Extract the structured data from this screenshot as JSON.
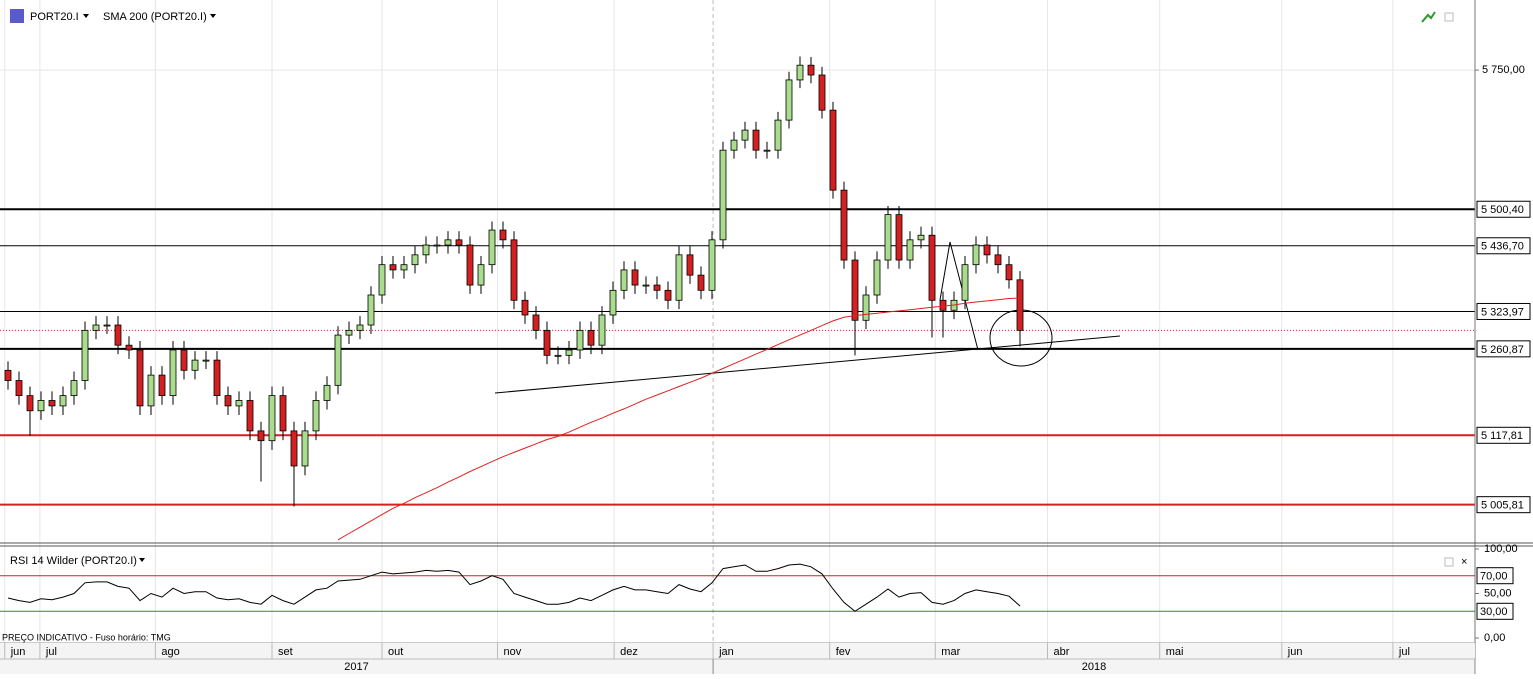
{
  "chart_data": {
    "type": "candlestick",
    "symbol": "PORT20.I",
    "footnote": "PREÇO INDICATIVO - Fuso horário: TMG",
    "log_scale": true,
    "up_color": "#a9dc8c",
    "down_color": "#d42020",
    "ylim": [
      4945,
      5880
    ],
    "yticks": [
      {
        "value": 5750,
        "label": "5 750,00"
      }
    ],
    "levels": [
      {
        "value": 5500.4,
        "label": "5 500,40",
        "color": "#000000",
        "thick": true
      },
      {
        "value": 5436.7,
        "label": "5 436,70",
        "color": "#000000",
        "thick": false
      },
      {
        "value": 5323.97,
        "label": "5 323,97",
        "color": "#000000",
        "thick": false
      },
      {
        "value": 5260.87,
        "label": "5 260,87",
        "color": "#000000",
        "thick": true
      },
      {
        "value": 5117.81,
        "label": "5 117,81",
        "color": "#d42020",
        "thick": true
      },
      {
        "value": 5005.81,
        "label": "5 005,81",
        "color": "#d42020",
        "thick": true
      }
    ],
    "xticks": [
      {
        "value": -0.3,
        "label": "jun"
      },
      {
        "value": 2.9,
        "label": "jul"
      },
      {
        "value": 13.4,
        "label": "ago"
      },
      {
        "value": 24,
        "label": "set"
      },
      {
        "value": 34,
        "label": "out"
      },
      {
        "value": 44.5,
        "label": "nov"
      },
      {
        "value": 55.1,
        "label": "dez"
      },
      {
        "value": 64.1,
        "label": "jan"
      },
      {
        "value": 74.7,
        "label": "fev"
      },
      {
        "value": 84.3,
        "label": "mar"
      },
      {
        "value": 94.5,
        "label": "abr"
      },
      {
        "value": 104.7,
        "label": "mai"
      },
      {
        "value": 115.8,
        "label": "jun"
      },
      {
        "value": 125.9,
        "label": "jul"
      }
    ],
    "years": [
      {
        "value": 64.1,
        "label": "2017"
      },
      {
        "value": 134.3,
        "label": "2018"
      }
    ],
    "open": [
      5225,
      5208,
      5183,
      5158,
      5175,
      5166,
      5183,
      5208,
      5292,
      5301,
      5301,
      5267,
      5259,
      5166,
      5217,
      5183,
      5259,
      5225,
      5242,
      5242,
      5183,
      5166,
      5175,
      5125,
      5109,
      5183,
      5125,
      5068,
      5125,
      5175,
      5200,
      5284,
      5292,
      5301,
      5352,
      5404,
      5395,
      5404,
      5421,
      5438,
      5438,
      5447,
      5438,
      5369,
      5404,
      5464,
      5447,
      5343,
      5318,
      5292,
      5250,
      5250,
      5259,
      5292,
      5267,
      5318,
      5360,
      5395,
      5369,
      5369,
      5360,
      5343,
      5421,
      5386,
      5360,
      5447,
      5605,
      5623,
      5641,
      5605,
      5605,
      5659,
      5732,
      5759,
      5741,
      5677,
      5534,
      5412,
      5309,
      5352,
      5412,
      5491,
      5412,
      5447,
      5455,
      5343,
      5326,
      5343,
      5404,
      5438,
      5421,
      5404,
      5378
    ],
    "high": [
      5240,
      5223,
      5198,
      5190,
      5190,
      5198,
      5223,
      5307,
      5316,
      5316,
      5316,
      5282,
      5274,
      5232,
      5232,
      5274,
      5274,
      5257,
      5257,
      5257,
      5198,
      5190,
      5190,
      5140,
      5198,
      5198,
      5140,
      5140,
      5190,
      5215,
      5299,
      5307,
      5316,
      5367,
      5419,
      5419,
      5419,
      5436,
      5453,
      5453,
      5462,
      5462,
      5453,
      5419,
      5479,
      5479,
      5462,
      5358,
      5333,
      5307,
      5265,
      5274,
      5307,
      5307,
      5333,
      5375,
      5410,
      5410,
      5384,
      5384,
      5375,
      5436,
      5436,
      5401,
      5462,
      5620,
      5638,
      5656,
      5656,
      5620,
      5674,
      5747,
      5775,
      5774,
      5756,
      5692,
      5549,
      5427,
      5367,
      5427,
      5506,
      5506,
      5462,
      5470,
      5470,
      5358,
      5358,
      5419,
      5453,
      5453,
      5436,
      5419,
      5393
    ],
    "low": [
      5193,
      5168,
      5117,
      5143,
      5151,
      5151,
      5168,
      5193,
      5277,
      5286,
      5252,
      5244,
      5151,
      5151,
      5168,
      5168,
      5210,
      5210,
      5227,
      5168,
      5151,
      5151,
      5110,
      5043,
      5094,
      5110,
      5003,
      5053,
      5110,
      5160,
      5185,
      5269,
      5277,
      5286,
      5337,
      5380,
      5380,
      5389,
      5406,
      5423,
      5423,
      5423,
      5354,
      5354,
      5389,
      5432,
      5328,
      5303,
      5277,
      5235,
      5235,
      5235,
      5244,
      5252,
      5252,
      5303,
      5345,
      5354,
      5354,
      5345,
      5328,
      5328,
      5371,
      5345,
      5345,
      5432,
      5590,
      5608,
      5590,
      5590,
      5590,
      5644,
      5717,
      5726,
      5662,
      5519,
      5397,
      5250,
      5294,
      5337,
      5397,
      5397,
      5397,
      5432,
      5280,
      5280,
      5311,
      5328,
      5389,
      5406,
      5389,
      5363,
      5265
    ],
    "close": [
      5208,
      5183,
      5158,
      5175,
      5166,
      5183,
      5208,
      5292,
      5301,
      5301,
      5267,
      5259,
      5166,
      5217,
      5183,
      5259,
      5225,
      5242,
      5242,
      5183,
      5166,
      5175,
      5125,
      5109,
      5183,
      5125,
      5068,
      5125,
      5175,
      5200,
      5284,
      5292,
      5301,
      5352,
      5404,
      5395,
      5404,
      5421,
      5438,
      5438,
      5447,
      5438,
      5369,
      5404,
      5464,
      5447,
      5343,
      5318,
      5292,
      5250,
      5250,
      5259,
      5292,
      5267,
      5318,
      5360,
      5395,
      5369,
      5369,
      5360,
      5343,
      5421,
      5386,
      5360,
      5447,
      5605,
      5623,
      5641,
      5605,
      5605,
      5659,
      5732,
      5759,
      5741,
      5677,
      5534,
      5412,
      5309,
      5352,
      5412,
      5491,
      5412,
      5447,
      5455,
      5343,
      5326,
      5343,
      5404,
      5438,
      5421,
      5404,
      5378,
      5292
    ],
    "sma": {
      "name": "SMA 200 (PORT20.I)",
      "color": "#e02020",
      "values": [
        null,
        null,
        null,
        null,
        null,
        null,
        null,
        null,
        null,
        null,
        null,
        null,
        null,
        null,
        null,
        null,
        null,
        null,
        null,
        null,
        null,
        null,
        null,
        null,
        null,
        null,
        null,
        null,
        null,
        null,
        4950,
        4960,
        4970,
        4980,
        4990,
        5000,
        5008,
        5017,
        5025,
        5033,
        5042,
        5050,
        5059,
        5067,
        5075,
        5083,
        5090,
        5097,
        5104,
        5111,
        5116,
        5123,
        5131,
        5139,
        5146,
        5154,
        5161,
        5169,
        5177,
        5184,
        5191,
        5198,
        5205,
        5212,
        5220,
        5228,
        5236,
        5244,
        5252,
        5260,
        5268,
        5276,
        5284,
        5292,
        5300,
        5308,
        5314,
        5317,
        5319,
        5321,
        5323,
        5325,
        5327,
        5329,
        5331,
        5333,
        5335,
        5338,
        5340,
        5342,
        5344,
        5346,
        5347
      ]
    },
    "rsi": {
      "name": "RSI 14 Wilder (PORT20.I)",
      "color": "#000000",
      "ylim": [
        0,
        100
      ],
      "yticks": [
        {
          "value": 100,
          "label": "100,00"
        },
        {
          "value": 50,
          "label": "50,00"
        },
        {
          "value": 0,
          "label": "0,00"
        }
      ],
      "levels": [
        {
          "value": 70,
          "label": "70,00",
          "color": "#d42020"
        },
        {
          "value": 30,
          "label": "30,00",
          "color": "#1a9a1a"
        }
      ],
      "values": [
        45,
        42,
        40,
        44,
        43,
        46,
        50,
        62,
        63,
        63,
        58,
        56,
        42,
        50,
        46,
        56,
        50,
        52,
        52,
        45,
        43,
        44,
        40,
        38,
        48,
        42,
        38,
        46,
        54,
        56,
        64,
        65,
        66,
        70,
        74,
        72,
        73,
        74,
        76,
        75,
        76,
        74,
        60,
        64,
        70,
        66,
        50,
        46,
        42,
        38,
        38,
        40,
        45,
        42,
        48,
        54,
        58,
        54,
        54,
        52,
        50,
        60,
        55,
        52,
        62,
        78,
        80,
        82,
        75,
        75,
        78,
        82,
        83,
        80,
        72,
        55,
        40,
        30,
        38,
        46,
        55,
        46,
        50,
        51,
        40,
        38,
        42,
        50,
        54,
        52,
        50,
        47,
        36
      ]
    }
  }
}
